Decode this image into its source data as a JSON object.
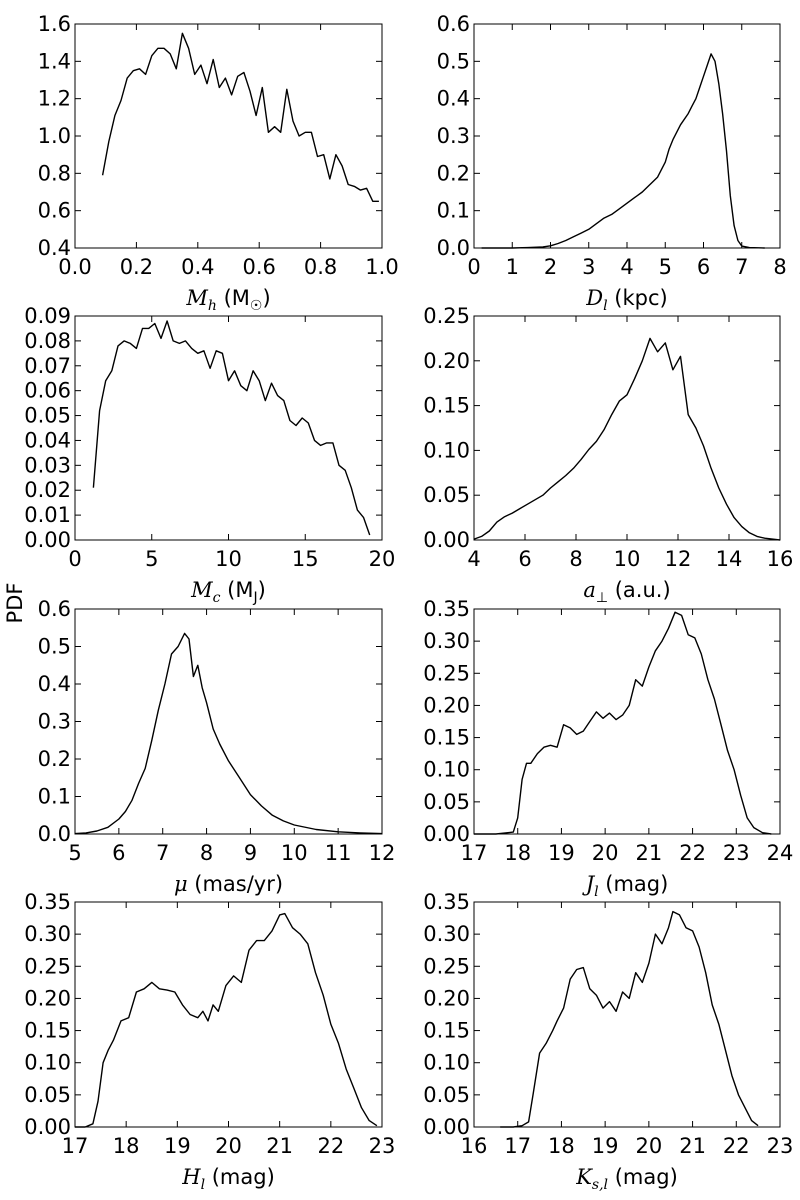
{
  "figure": {
    "shared_ylabel": "PDF"
  },
  "chart_data": [
    {
      "type": "line",
      "xlabel_parts": [
        {
          "t": "M",
          "style": "math"
        },
        {
          "t": "h",
          "style": "sub-math"
        },
        {
          "t": " (M",
          "style": "text"
        },
        {
          "t": "☉",
          "style": "sub"
        },
        {
          "t": ")",
          "style": "text"
        }
      ],
      "xlim": [
        0.0,
        1.0
      ],
      "ylim": [
        0.4,
        1.6
      ],
      "xticks": [
        0.0,
        0.2,
        0.4,
        0.6,
        0.8,
        1.0
      ],
      "xtick_labels": [
        "0.0",
        "0.2",
        "0.4",
        "0.6",
        "0.8",
        "1.0"
      ],
      "yticks": [
        0.4,
        0.6,
        0.8,
        1.0,
        1.2,
        1.4,
        1.6
      ],
      "ytick_labels": [
        "0.4",
        "0.6",
        "0.8",
        "1.0",
        "1.2",
        "1.4",
        "1.6"
      ],
      "x": [
        0.09,
        0.11,
        0.13,
        0.15,
        0.17,
        0.19,
        0.21,
        0.23,
        0.25,
        0.27,
        0.29,
        0.31,
        0.33,
        0.35,
        0.37,
        0.39,
        0.41,
        0.43,
        0.45,
        0.47,
        0.49,
        0.51,
        0.53,
        0.55,
        0.57,
        0.59,
        0.61,
        0.63,
        0.65,
        0.67,
        0.69,
        0.71,
        0.73,
        0.75,
        0.77,
        0.79,
        0.81,
        0.83,
        0.85,
        0.87,
        0.89,
        0.91,
        0.93,
        0.95,
        0.97,
        0.99
      ],
      "y": [
        0.79,
        0.97,
        1.11,
        1.19,
        1.31,
        1.35,
        1.36,
        1.33,
        1.43,
        1.47,
        1.47,
        1.44,
        1.36,
        1.55,
        1.47,
        1.33,
        1.38,
        1.28,
        1.41,
        1.26,
        1.31,
        1.22,
        1.32,
        1.34,
        1.24,
        1.11,
        1.26,
        1.02,
        1.05,
        1.02,
        1.25,
        1.08,
        1.0,
        1.02,
        1.02,
        0.89,
        0.9,
        0.77,
        0.9,
        0.84,
        0.74,
        0.73,
        0.71,
        0.72,
        0.65,
        0.65
      ]
    },
    {
      "type": "line",
      "xlabel_parts": [
        {
          "t": "D",
          "style": "math"
        },
        {
          "t": "l",
          "style": "sub-math"
        },
        {
          "t": " (kpc)",
          "style": "text"
        }
      ],
      "xlim": [
        0,
        8
      ],
      "ylim": [
        0.0,
        0.6
      ],
      "xticks": [
        0,
        1,
        2,
        3,
        4,
        5,
        6,
        7,
        8
      ],
      "xtick_labels": [
        "0",
        "1",
        "2",
        "3",
        "4",
        "5",
        "6",
        "7",
        "8"
      ],
      "yticks": [
        0.0,
        0.1,
        0.2,
        0.3,
        0.4,
        0.5,
        0.6
      ],
      "ytick_labels": [
        "0.0",
        "0.1",
        "0.2",
        "0.3",
        "0.4",
        "0.5",
        "0.6"
      ],
      "x": [
        0.2,
        0.6,
        1.0,
        1.4,
        1.8,
        2.0,
        2.2,
        2.4,
        2.6,
        2.8,
        3.0,
        3.2,
        3.4,
        3.6,
        3.8,
        4.0,
        4.2,
        4.4,
        4.6,
        4.8,
        5.0,
        5.1,
        5.2,
        5.4,
        5.6,
        5.7,
        5.8,
        5.9,
        6.0,
        6.1,
        6.2,
        6.3,
        6.4,
        6.5,
        6.6,
        6.7,
        6.8,
        6.9,
        7.0,
        7.2,
        7.6
      ],
      "y": [
        0.0,
        0.0,
        0.0,
        0.001,
        0.003,
        0.006,
        0.012,
        0.02,
        0.03,
        0.04,
        0.05,
        0.065,
        0.08,
        0.09,
        0.105,
        0.12,
        0.135,
        0.15,
        0.17,
        0.19,
        0.23,
        0.265,
        0.29,
        0.33,
        0.36,
        0.38,
        0.4,
        0.43,
        0.46,
        0.49,
        0.52,
        0.5,
        0.44,
        0.36,
        0.26,
        0.14,
        0.06,
        0.02,
        0.005,
        0.001,
        0.0
      ]
    },
    {
      "type": "line",
      "xlabel_parts": [
        {
          "t": "M",
          "style": "math"
        },
        {
          "t": "c",
          "style": "sub-math"
        },
        {
          "t": " (M",
          "style": "text"
        },
        {
          "t": "J",
          "style": "sub"
        },
        {
          "t": ")",
          "style": "text"
        }
      ],
      "xlim": [
        0,
        20
      ],
      "ylim": [
        0.0,
        0.09
      ],
      "xticks": [
        0,
        5,
        10,
        15,
        20
      ],
      "xtick_labels": [
        "0",
        "5",
        "10",
        "15",
        "20"
      ],
      "yticks": [
        0.0,
        0.01,
        0.02,
        0.03,
        0.04,
        0.05,
        0.06,
        0.07,
        0.08,
        0.09
      ],
      "ytick_labels": [
        "0.00",
        "0.01",
        "0.02",
        "0.03",
        "0.04",
        "0.05",
        "0.06",
        "0.07",
        "0.08",
        "0.09"
      ],
      "x": [
        1.2,
        1.6,
        2.0,
        2.4,
        2.8,
        3.2,
        3.6,
        4.0,
        4.4,
        4.8,
        5.2,
        5.6,
        6.0,
        6.4,
        6.8,
        7.2,
        7.6,
        8.0,
        8.4,
        8.8,
        9.2,
        9.6,
        10.0,
        10.4,
        10.8,
        11.2,
        11.6,
        12.0,
        12.4,
        12.8,
        13.2,
        13.6,
        14.0,
        14.4,
        14.8,
        15.2,
        15.6,
        16.0,
        16.4,
        16.8,
        17.2,
        17.6,
        18.0,
        18.4,
        18.8,
        19.2
      ],
      "y": [
        0.021,
        0.052,
        0.064,
        0.068,
        0.078,
        0.08,
        0.079,
        0.077,
        0.085,
        0.085,
        0.087,
        0.081,
        0.088,
        0.08,
        0.079,
        0.08,
        0.077,
        0.075,
        0.076,
        0.069,
        0.076,
        0.075,
        0.064,
        0.068,
        0.062,
        0.06,
        0.068,
        0.064,
        0.056,
        0.063,
        0.058,
        0.056,
        0.048,
        0.046,
        0.049,
        0.047,
        0.04,
        0.038,
        0.039,
        0.039,
        0.03,
        0.028,
        0.021,
        0.012,
        0.009,
        0.002
      ]
    },
    {
      "type": "line",
      "xlabel_parts": [
        {
          "t": "a",
          "style": "math"
        },
        {
          "t": "⊥",
          "style": "sub"
        },
        {
          "t": " (a.u.)",
          "style": "text"
        }
      ],
      "xlim": [
        4,
        16
      ],
      "ylim": [
        0.0,
        0.25
      ],
      "xticks": [
        4,
        6,
        8,
        10,
        12,
        14,
        16
      ],
      "xtick_labels": [
        "4",
        "6",
        "8",
        "10",
        "12",
        "14",
        "16"
      ],
      "yticks": [
        0.0,
        0.05,
        0.1,
        0.15,
        0.2,
        0.25
      ],
      "ytick_labels": [
        "0.00",
        "0.05",
        "0.10",
        "0.15",
        "0.20",
        "0.25"
      ],
      "x": [
        4.0,
        4.3,
        4.6,
        4.9,
        5.2,
        5.5,
        5.8,
        6.1,
        6.4,
        6.7,
        7.0,
        7.3,
        7.6,
        7.9,
        8.2,
        8.5,
        8.8,
        9.1,
        9.4,
        9.7,
        10.0,
        10.3,
        10.6,
        10.9,
        11.2,
        11.5,
        11.8,
        12.1,
        12.4,
        12.7,
        13.0,
        13.3,
        13.6,
        13.9,
        14.2,
        14.5,
        14.8,
        15.1,
        15.4,
        15.7,
        16.0
      ],
      "y": [
        0.001,
        0.004,
        0.01,
        0.02,
        0.026,
        0.03,
        0.035,
        0.04,
        0.045,
        0.05,
        0.058,
        0.065,
        0.072,
        0.08,
        0.09,
        0.101,
        0.11,
        0.123,
        0.14,
        0.155,
        0.162,
        0.18,
        0.2,
        0.225,
        0.21,
        0.22,
        0.19,
        0.205,
        0.14,
        0.125,
        0.105,
        0.08,
        0.058,
        0.04,
        0.025,
        0.015,
        0.008,
        0.004,
        0.002,
        0.001,
        0.0
      ]
    },
    {
      "type": "line",
      "xlabel_parts": [
        {
          "t": "μ",
          "style": "math"
        },
        {
          "t": " (mas/yr)",
          "style": "text"
        }
      ],
      "xlim": [
        5,
        12
      ],
      "ylim": [
        0.0,
        0.6
      ],
      "xticks": [
        5,
        6,
        7,
        8,
        9,
        10,
        11,
        12
      ],
      "xtick_labels": [
        "5",
        "6",
        "7",
        "8",
        "9",
        "10",
        "11",
        "12"
      ],
      "yticks": [
        0.0,
        0.1,
        0.2,
        0.3,
        0.4,
        0.5,
        0.6
      ],
      "ytick_labels": [
        "0.0",
        "0.1",
        "0.2",
        "0.3",
        "0.4",
        "0.5",
        "0.6"
      ],
      "x": [
        5.0,
        5.25,
        5.5,
        5.75,
        6.0,
        6.15,
        6.3,
        6.45,
        6.6,
        6.75,
        6.9,
        7.05,
        7.2,
        7.35,
        7.5,
        7.6,
        7.7,
        7.8,
        7.9,
        8.0,
        8.15,
        8.3,
        8.5,
        8.75,
        9.0,
        9.25,
        9.5,
        9.75,
        10.0,
        10.5,
        11.0,
        11.5,
        12.0
      ],
      "y": [
        0.001,
        0.003,
        0.008,
        0.018,
        0.04,
        0.06,
        0.09,
        0.135,
        0.175,
        0.25,
        0.33,
        0.4,
        0.48,
        0.5,
        0.535,
        0.52,
        0.42,
        0.45,
        0.39,
        0.35,
        0.28,
        0.24,
        0.195,
        0.15,
        0.105,
        0.075,
        0.05,
        0.035,
        0.024,
        0.012,
        0.006,
        0.003,
        0.001
      ]
    },
    {
      "type": "line",
      "xlabel_parts": [
        {
          "t": "J",
          "style": "math"
        },
        {
          "t": "l",
          "style": "sub-math"
        },
        {
          "t": " (mag)",
          "style": "text"
        }
      ],
      "xlim": [
        17,
        24
      ],
      "ylim": [
        0.0,
        0.35
      ],
      "xticks": [
        17,
        18,
        19,
        20,
        21,
        22,
        23,
        24
      ],
      "xtick_labels": [
        "17",
        "18",
        "19",
        "20",
        "21",
        "22",
        "23",
        "24"
      ],
      "yticks": [
        0.0,
        0.05,
        0.1,
        0.15,
        0.2,
        0.25,
        0.3,
        0.35
      ],
      "ytick_labels": [
        "0.00",
        "0.05",
        "0.10",
        "0.15",
        "0.20",
        "0.25",
        "0.30",
        "0.35"
      ],
      "x": [
        17.0,
        17.5,
        17.9,
        18.0,
        18.1,
        18.2,
        18.3,
        18.45,
        18.6,
        18.75,
        18.9,
        19.05,
        19.2,
        19.35,
        19.5,
        19.65,
        19.8,
        19.95,
        20.1,
        20.25,
        20.4,
        20.55,
        20.7,
        20.85,
        21.0,
        21.15,
        21.3,
        21.45,
        21.6,
        21.75,
        21.9,
        22.05,
        22.2,
        22.35,
        22.5,
        22.65,
        22.8,
        22.95,
        23.1,
        23.25,
        23.4,
        23.6,
        23.8
      ],
      "y": [
        0.0,
        0.0,
        0.003,
        0.025,
        0.085,
        0.11,
        0.11,
        0.125,
        0.135,
        0.138,
        0.135,
        0.17,
        0.165,
        0.155,
        0.16,
        0.175,
        0.19,
        0.18,
        0.188,
        0.178,
        0.185,
        0.2,
        0.24,
        0.23,
        0.26,
        0.285,
        0.3,
        0.32,
        0.345,
        0.34,
        0.31,
        0.305,
        0.28,
        0.24,
        0.21,
        0.17,
        0.13,
        0.1,
        0.06,
        0.025,
        0.01,
        0.002,
        0.0
      ]
    },
    {
      "type": "line",
      "xlabel_parts": [
        {
          "t": "H",
          "style": "math"
        },
        {
          "t": "l",
          "style": "sub-math"
        },
        {
          "t": " (mag)",
          "style": "text"
        }
      ],
      "xlim": [
        17,
        23
      ],
      "ylim": [
        0.0,
        0.35
      ],
      "xticks": [
        17,
        18,
        19,
        20,
        21,
        22,
        23
      ],
      "xtick_labels": [
        "17",
        "18",
        "19",
        "20",
        "21",
        "22",
        "23"
      ],
      "yticks": [
        0.0,
        0.05,
        0.1,
        0.15,
        0.2,
        0.25,
        0.3,
        0.35
      ],
      "ytick_labels": [
        "0.00",
        "0.05",
        "0.10",
        "0.15",
        "0.20",
        "0.25",
        "0.30",
        "0.35"
      ],
      "x": [
        17.0,
        17.2,
        17.35,
        17.45,
        17.55,
        17.65,
        17.75,
        17.9,
        18.05,
        18.2,
        18.35,
        18.5,
        18.65,
        18.8,
        18.95,
        19.1,
        19.25,
        19.4,
        19.5,
        19.6,
        19.7,
        19.8,
        19.95,
        20.1,
        20.25,
        20.4,
        20.55,
        20.7,
        20.85,
        21.0,
        21.1,
        21.25,
        21.4,
        21.55,
        21.7,
        21.85,
        22.0,
        22.15,
        22.3,
        22.45,
        22.6,
        22.75,
        22.9
      ],
      "y": [
        0.0,
        0.0,
        0.005,
        0.04,
        0.1,
        0.12,
        0.135,
        0.165,
        0.17,
        0.21,
        0.215,
        0.225,
        0.215,
        0.213,
        0.21,
        0.19,
        0.175,
        0.17,
        0.18,
        0.165,
        0.19,
        0.18,
        0.22,
        0.235,
        0.225,
        0.275,
        0.29,
        0.29,
        0.305,
        0.33,
        0.332,
        0.31,
        0.3,
        0.285,
        0.24,
        0.205,
        0.16,
        0.13,
        0.09,
        0.06,
        0.03,
        0.01,
        0.002
      ]
    },
    {
      "type": "line",
      "xlabel_parts": [
        {
          "t": "K",
          "style": "math"
        },
        {
          "t": "s,l",
          "style": "sub-math"
        },
        {
          "t": " (mag)",
          "style": "text"
        }
      ],
      "xlim": [
        16,
        23
      ],
      "ylim": [
        0.0,
        0.35
      ],
      "xticks": [
        16,
        17,
        18,
        19,
        20,
        21,
        22,
        23
      ],
      "xtick_labels": [
        "16",
        "17",
        "18",
        "19",
        "20",
        "21",
        "22",
        "23"
      ],
      "yticks": [
        0.0,
        0.05,
        0.1,
        0.15,
        0.2,
        0.25,
        0.3,
        0.35
      ],
      "ytick_labels": [
        "0.00",
        "0.05",
        "0.10",
        "0.15",
        "0.20",
        "0.25",
        "0.30",
        "0.35"
      ],
      "x": [
        16.6,
        16.9,
        17.1,
        17.25,
        17.35,
        17.5,
        17.65,
        17.8,
        17.9,
        18.05,
        18.2,
        18.35,
        18.5,
        18.65,
        18.8,
        18.95,
        19.1,
        19.25,
        19.4,
        19.55,
        19.7,
        19.85,
        20.0,
        20.15,
        20.3,
        20.45,
        20.55,
        20.7,
        20.85,
        21.0,
        21.15,
        21.3,
        21.45,
        21.6,
        21.75,
        21.9,
        22.05,
        22.2,
        22.35,
        22.5
      ],
      "y": [
        0.0,
        0.0,
        0.002,
        0.008,
        0.05,
        0.115,
        0.13,
        0.15,
        0.165,
        0.185,
        0.23,
        0.245,
        0.248,
        0.215,
        0.205,
        0.185,
        0.195,
        0.18,
        0.21,
        0.2,
        0.24,
        0.225,
        0.255,
        0.3,
        0.285,
        0.31,
        0.335,
        0.33,
        0.31,
        0.305,
        0.28,
        0.24,
        0.19,
        0.16,
        0.12,
        0.08,
        0.05,
        0.03,
        0.01,
        0.002
      ]
    }
  ]
}
